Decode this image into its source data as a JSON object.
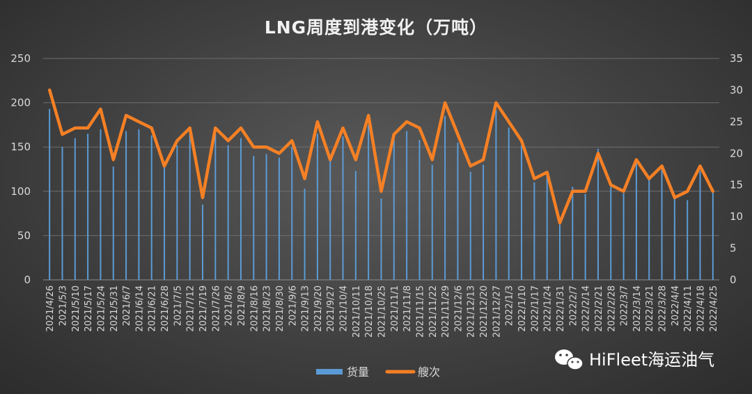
{
  "chart_data": {
    "type": "bar+line",
    "title": "LNG周度到港变化（万吨）",
    "categories": [
      "2021/4/26",
      "2021/5/3",
      "2021/5/10",
      "2021/5/17",
      "2021/5/24",
      "2021/5/31",
      "2021/6/7",
      "2021/6/14",
      "2021/6/21",
      "2021/6/28",
      "2021/7/5",
      "2021/7/12",
      "2021/7/19",
      "2021/7/26",
      "2021/8/2",
      "2021/8/9",
      "2021/8/16",
      "2021/8/23",
      "2021/8/30",
      "2021/9/6",
      "2021/9/13",
      "2021/9/20",
      "2021/9/27",
      "2021/10/4",
      "2021/10/11",
      "2021/10/18",
      "2021/10/25",
      "2021/11/1",
      "2021/11/8",
      "2021/11/15",
      "2021/11/22",
      "2021/11/29",
      "2021/12/6",
      "2021/12/13",
      "2021/12/20",
      "2021/12/27",
      "2022/1/3",
      "2022/1/10",
      "2022/1/17",
      "2022/1/24",
      "2022/1/31",
      "2022/2/7",
      "2022/2/14",
      "2022/2/21",
      "2022/2/28",
      "2022/3/7",
      "2022/3/14",
      "2022/3/21",
      "2022/3/28",
      "2022/4/4",
      "2022/4/11",
      "2022/4/18",
      "2022/4/25"
    ],
    "series": [
      {
        "name": "货量",
        "type": "bar",
        "axis": "left",
        "color": "#5b9bd5",
        "values": [
          193,
          150,
          160,
          165,
          170,
          128,
          168,
          170,
          163,
          132,
          152,
          167,
          85,
          165,
          152,
          160,
          140,
          142,
          138,
          150,
          103,
          165,
          138,
          162,
          123,
          175,
          92,
          158,
          168,
          158,
          130,
          185,
          155,
          122,
          130,
          192,
          172,
          152,
          110,
          117,
          66,
          105,
          97,
          148,
          105,
          98,
          132,
          115,
          125,
          92,
          90,
          123,
          100
        ]
      },
      {
        "name": "艘次",
        "type": "line",
        "axis": "right",
        "color": "#f58025",
        "values": [
          30,
          23,
          24,
          24,
          27,
          19,
          26,
          25,
          24,
          18,
          22,
          24,
          13,
          24,
          22,
          24,
          21,
          21,
          20,
          22,
          16,
          25,
          19,
          24,
          19,
          26,
          14,
          23,
          25,
          24,
          19,
          28,
          23,
          18,
          19,
          28,
          25,
          22,
          16,
          17,
          9,
          14,
          14,
          20,
          15,
          14,
          19,
          16,
          18,
          13,
          14,
          18,
          14
        ]
      }
    ],
    "y_left": {
      "min": 0,
      "max": 250,
      "ticks": [
        "0",
        "50",
        "100",
        "150",
        "200",
        "250"
      ]
    },
    "y_right": {
      "min": 0,
      "max": 35,
      "ticks": [
        "0",
        "5",
        "10",
        "15",
        "20",
        "25",
        "30",
        "35"
      ]
    },
    "grid": true,
    "legend_position": "bottom"
  },
  "watermark": {
    "text": "HiFleet海运油气",
    "icon": "wechat-icon"
  }
}
